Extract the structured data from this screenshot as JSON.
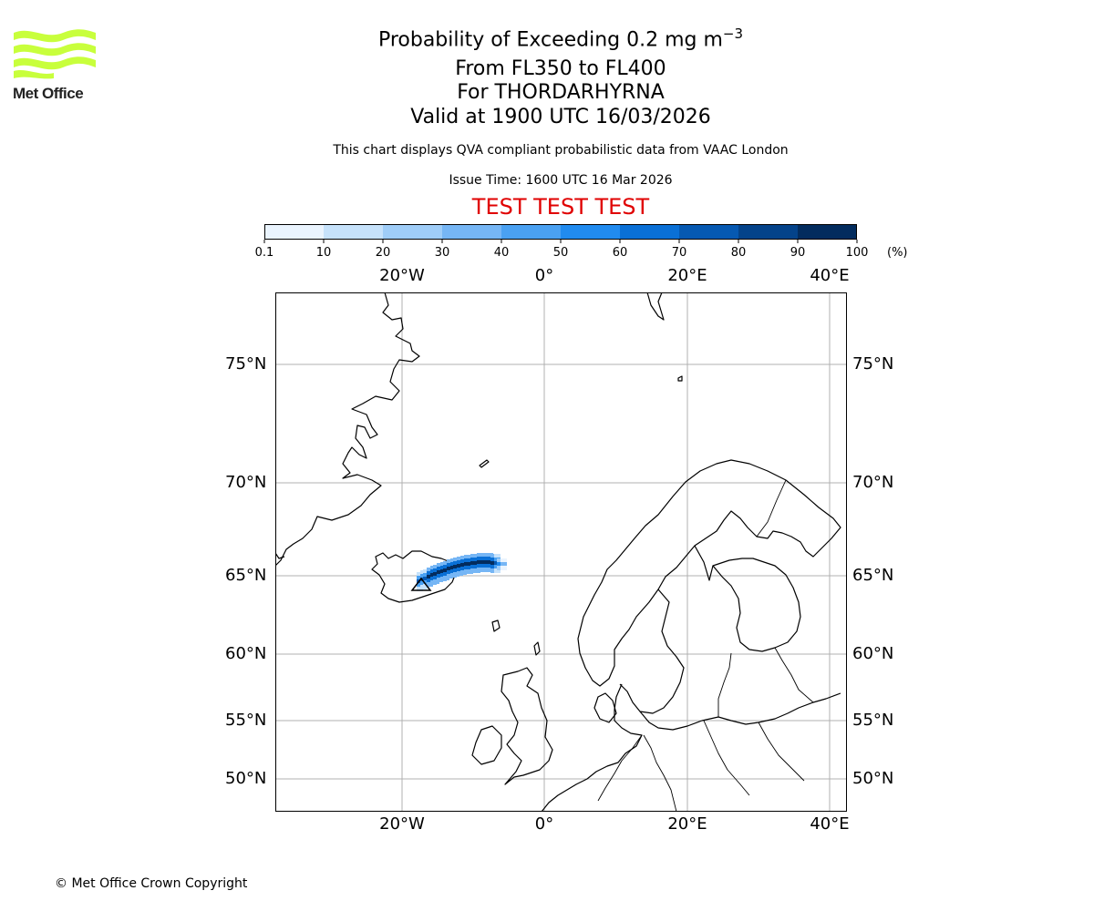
{
  "logo": {
    "text": "Met Office",
    "color": "#c8ff3c"
  },
  "header": {
    "title_prefix": "Probability of Exceeding 0.2 mg m",
    "title_exponent": "−3",
    "levels": "From FL350 to FL400",
    "volcano": "For THORDARHYRNA",
    "valid": "Valid at 1900 UTC 16/03/2026",
    "disclaimer": "This chart displays QVA compliant probabilistic data from VAAC London",
    "issue_time": "Issue Time: 1600 UTC 16 Mar 2026",
    "test_banner": "TEST TEST TEST"
  },
  "colorbar": {
    "ticks": [
      "0.1",
      "10",
      "20",
      "30",
      "40",
      "50",
      "60",
      "70",
      "80",
      "90",
      "100"
    ],
    "unit": "(%)",
    "colors": [
      "#eaf4fe",
      "#c6e2fb",
      "#9fcdf8",
      "#76b6f5",
      "#4aa1f2",
      "#218bef",
      "#0a70d6",
      "#0659b2",
      "#04438a",
      "#032c5e"
    ]
  },
  "map": {
    "lon_labels": [
      {
        "lon": -20,
        "label": "20°W"
      },
      {
        "lon": 0,
        "label": "0°"
      },
      {
        "lon": 20,
        "label": "20°E"
      },
      {
        "lon": 40,
        "label": "40°E"
      }
    ],
    "lat_labels": [
      {
        "lat": 75,
        "label": "75°N"
      },
      {
        "lat": 70,
        "label": "70°N"
      },
      {
        "lat": 65,
        "label": "65°N"
      },
      {
        "lat": 60,
        "label": "60°N"
      },
      {
        "lat": 55,
        "label": "55°N"
      },
      {
        "lat": 50,
        "label": "50°N"
      }
    ],
    "plume_probability_range_percent": [
      0.1,
      100
    ]
  },
  "footer": {
    "copyright": "© Met Office Crown Copyright"
  }
}
